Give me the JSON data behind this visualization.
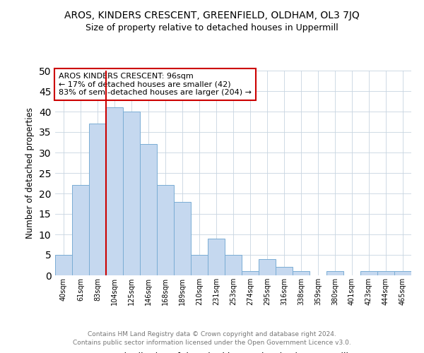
{
  "title1": "AROS, KINDERS CRESCENT, GREENFIELD, OLDHAM, OL3 7JQ",
  "title2": "Size of property relative to detached houses in Uppermill",
  "xlabel": "Distribution of detached houses by size in Uppermill",
  "ylabel": "Number of detached properties",
  "categories": [
    "40sqm",
    "61sqm",
    "83sqm",
    "104sqm",
    "125sqm",
    "146sqm",
    "168sqm",
    "189sqm",
    "210sqm",
    "231sqm",
    "253sqm",
    "274sqm",
    "295sqm",
    "316sqm",
    "338sqm",
    "359sqm",
    "380sqm",
    "401sqm",
    "423sqm",
    "444sqm",
    "465sqm"
  ],
  "values": [
    5,
    22,
    37,
    41,
    40,
    32,
    22,
    18,
    5,
    9,
    5,
    1,
    4,
    2,
    1,
    0,
    1,
    0,
    1,
    1,
    1
  ],
  "bar_color": "#c5d8ef",
  "bar_edge_color": "#7aadd4",
  "ylim": [
    0,
    50
  ],
  "yticks": [
    0,
    5,
    10,
    15,
    20,
    25,
    30,
    35,
    40,
    45,
    50
  ],
  "vline_x": 2.5,
  "vline_color": "#cc0000",
  "annotation_title": "AROS KINDERS CRESCENT: 96sqm",
  "annotation_line1": "← 17% of detached houses are smaller (42)",
  "annotation_line2": "83% of semi-detached houses are larger (204) →",
  "annotation_box_color": "#cc0000",
  "footer1": "Contains HM Land Registry data © Crown copyright and database right 2024.",
  "footer2": "Contains public sector information licensed under the Open Government Licence v3.0.",
  "background_color": "#ffffff",
  "grid_color": "#c8d4e0"
}
